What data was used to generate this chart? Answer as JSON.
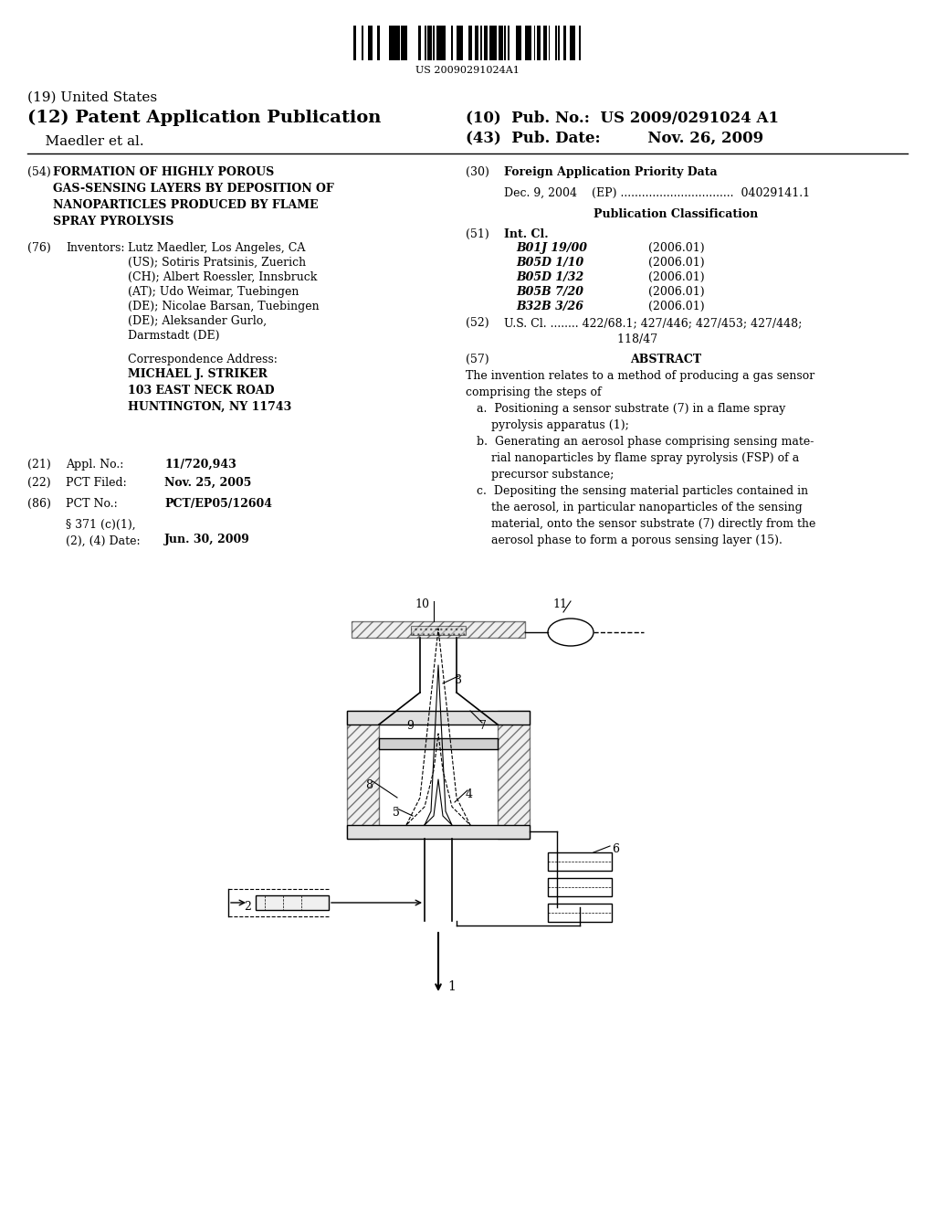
{
  "background_color": "#ffffff",
  "barcode_text": "US 20090291024A1",
  "header_line1_left": "(19) United States",
  "header_line2_left": "(12) Patent Application Publication",
  "header_line3_left": "Maedler et al.",
  "header_line2_right_label": "(10) Pub. No.:",
  "header_line2_right_value": "US 2009/0291024 A1",
  "header_line3_right_label": "(43) Pub. Date:",
  "header_line3_right_value": "Nov. 26, 2009",
  "field54_label": "(54)",
  "field54_title": "FORMATION OF HIGHLY POROUS\nGAS-SENSING LAYERS BY DEPOSITION OF\nNANOPARTICLES PRODUCED BY FLAME\nSPRAY PYROLYSIS",
  "field30_label": "(30)",
  "field30_title": "Foreign Application Priority Data",
  "field30_entry": "Dec. 9, 2004    (EP) ................................  04029141.1",
  "pub_class_title": "Publication Classification",
  "field51_label": "(51)",
  "field51_title": "Int. Cl.",
  "int_cl_entries": [
    [
      "B01J 19/00",
      "(2006.01)"
    ],
    [
      "B05D 1/10",
      "(2006.01)"
    ],
    [
      "B05D 1/32",
      "(2006.01)"
    ],
    [
      "B05B 7/20",
      "(2006.01)"
    ],
    [
      "B32B 3/26",
      "(2006.01)"
    ]
  ],
  "field52_label": "(52)",
  "field52_text": "U.S. Cl. ........ 422/68.1; 427/446; 427/453; 427/448;\n118/47",
  "field57_label": "(57)",
  "field57_title": "ABSTRACT",
  "abstract_text": "The invention relates to a method of producing a gas sensor\ncomprising the steps of\n   a.  Positioning a sensor substrate (7) in a flame spray\n       pyrolysis apparatus (1);\n   b.  Generating an aerosol phase comprising sensing mate-\n       rial nanoparticles by flame spray pyrolysis (FSP) of a\n       precursor substance;\n   c.  Depositing the sensing material particles contained in\n       the aerosol, in particular nanoparticles of the sensing\n       material, onto the sensor substrate (7) directly from the\n       aerosol phase to form a porous sensing layer (15).",
  "field76_label": "(76)",
  "field76_title": "Inventors:",
  "inventors_text": "Lutz Maedler, Los Angeles, CA\n(US); Sotiris Pratsinis, Zuerich\n(CH); Albert Roessler, Innsbruck\n(AT); Udo Weimar, Tuebingen\n(DE); Nicolae Barsan, Tuebingen\n(DE); Aleksander Gurlo,\nDarmstadt (DE)",
  "corr_addr_title": "Correspondence Address:",
  "corr_addr_text": "MICHAEL J. STRIKER\n103 EAST NECK ROAD\nHUNTINGTON, NY 11743",
  "field21_label": "(21)",
  "field21_title": "Appl. No.:",
  "field21_value": "11/720,943",
  "field22_label": "(22)",
  "field22_title": "PCT Filed:",
  "field22_value": "Nov. 25, 2005",
  "field86_label": "(86)",
  "field86_title": "PCT No.:",
  "field86_value": "PCT/EP05/12604",
  "field86b_text": "§ 371 (c)(1),\n(2), (4) Date:",
  "field86b_value": "Jun. 30, 2009"
}
